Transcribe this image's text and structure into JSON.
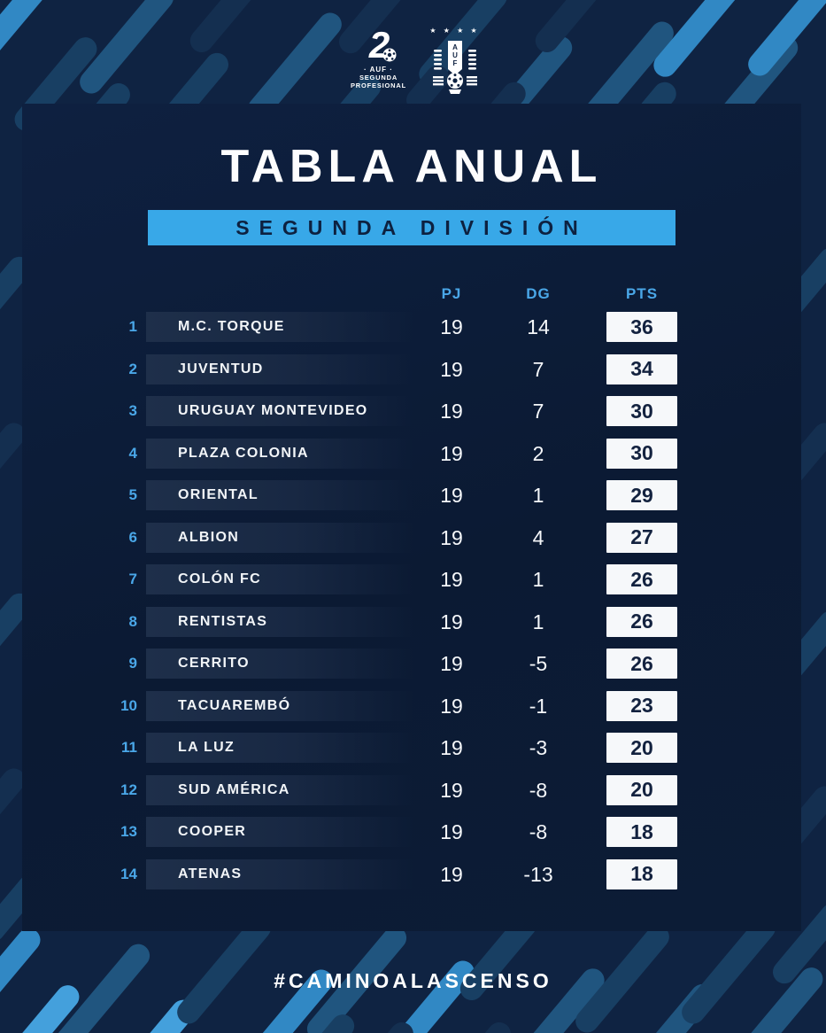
{
  "logos": {
    "segunda": {
      "number": "2",
      "org": "· AUF ·",
      "line1": "SEGUNDA",
      "line2": "PROFESIONAL"
    },
    "auf": {
      "stars": "★ ★ ★ ★",
      "l1": "A",
      "l2": "U",
      "l3": "F"
    }
  },
  "chart_data": {
    "type": "table",
    "title": "TABLA ANUAL",
    "subtitle": "SEGUNDA DIVISIÓN",
    "columns": {
      "pj": "PJ",
      "dg": "DG",
      "pts": "PTS"
    },
    "rows": [
      {
        "pos": "1",
        "team": "M.C. TORQUE",
        "pj": "19",
        "dg": "14",
        "pts": "36"
      },
      {
        "pos": "2",
        "team": "JUVENTUD",
        "pj": "19",
        "dg": "7",
        "pts": "34"
      },
      {
        "pos": "3",
        "team": "URUGUAY MONTEVIDEO",
        "pj": "19",
        "dg": "7",
        "pts": "30"
      },
      {
        "pos": "4",
        "team": "PLAZA COLONIA",
        "pj": "19",
        "dg": "2",
        "pts": "30"
      },
      {
        "pos": "5",
        "team": "ORIENTAL",
        "pj": "19",
        "dg": "1",
        "pts": "29"
      },
      {
        "pos": "6",
        "team": "ALBION",
        "pj": "19",
        "dg": "4",
        "pts": "27"
      },
      {
        "pos": "7",
        "team": "COLÓN FC",
        "pj": "19",
        "dg": "1",
        "pts": "26"
      },
      {
        "pos": "8",
        "team": "RENTISTAS",
        "pj": "19",
        "dg": "1",
        "pts": "26"
      },
      {
        "pos": "9",
        "team": "CERRITO",
        "pj": "19",
        "dg": "-5",
        "pts": "26"
      },
      {
        "pos": "10",
        "team": "TACUAREMBÓ",
        "pj": "19",
        "dg": "-1",
        "pts": "23"
      },
      {
        "pos": "11",
        "team": "LA LUZ",
        "pj": "19",
        "dg": "-3",
        "pts": "20"
      },
      {
        "pos": "12",
        "team": "SUD AMÉRICA",
        "pj": "19",
        "dg": "-8",
        "pts": "20"
      },
      {
        "pos": "13",
        "team": "COOPER",
        "pj": "19",
        "dg": "-8",
        "pts": "18"
      },
      {
        "pos": "14",
        "team": "ATENAS",
        "pj": "19",
        "dg": "-13",
        "pts": "18"
      }
    ]
  },
  "footer": {
    "hashtag": "#CAMINOALASCENSO"
  },
  "colors": {
    "background": "#0f2342",
    "card": "#0c1c36",
    "accent_banner": "#38a8e8",
    "column_header": "#4aa7e8",
    "pts_box": "#f6f8fa",
    "pts_text": "#13223f",
    "pill_bright": "#3188c4",
    "pill_medium": "#20557f",
    "pill_dim": "#183f63"
  }
}
